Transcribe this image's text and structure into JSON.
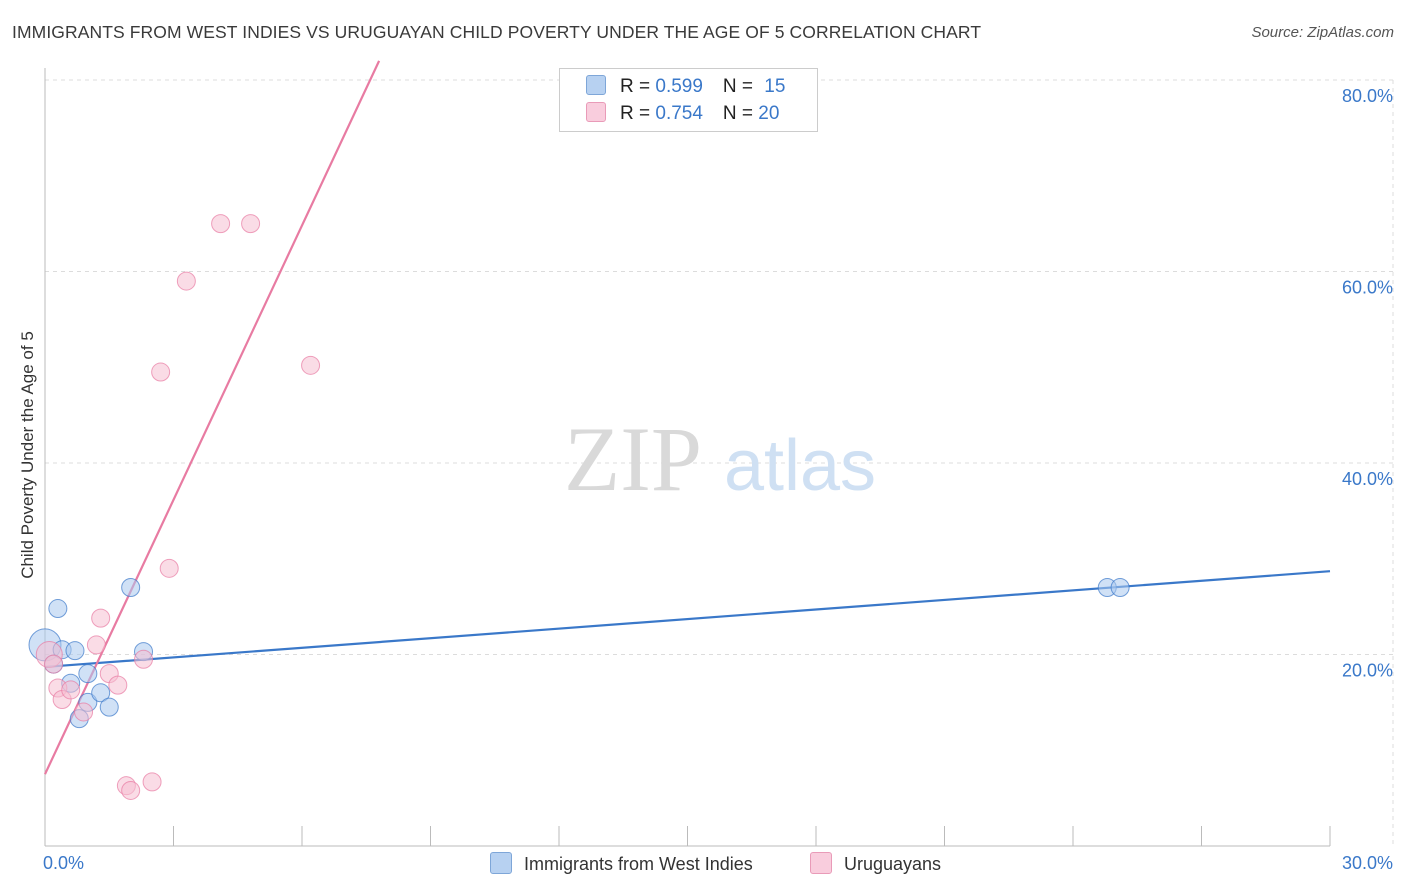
{
  "title": "IMMIGRANTS FROM WEST INDIES VS URUGUAYAN CHILD POVERTY UNDER THE AGE OF 5 CORRELATION CHART",
  "source": "Source: ZipAtlas.com",
  "watermark": {
    "zip": "ZIP",
    "atlas": "atlas"
  },
  "legend": {
    "rows": [
      {
        "r_label": "R = ",
        "r_value": "0.599",
        "n_label": "N = ",
        "n_value": "15"
      },
      {
        "r_label": "R = ",
        "r_value": "0.754",
        "n_label": "N = ",
        "n_value": "20"
      }
    ]
  },
  "colors": {
    "blue": "#3a78c9",
    "blue_fill": "#a9c8ef",
    "pink": "#e87ba2",
    "pink_fill": "#f6bfd2",
    "grid": "#dcdcdc"
  },
  "chart_data": {
    "type": "scatter",
    "title": "IMMIGRANTS FROM WEST INDIES VS URUGUAYAN CHILD POVERTY UNDER THE AGE OF 5 CORRELATION CHART",
    "xlabel": "",
    "ylabel": "Child Poverty Under the Age of 5",
    "xlim": [
      0,
      30
    ],
    "ylim": [
      0,
      80
    ],
    "x_tick_labels": [
      {
        "value": 0,
        "label": "0.0%"
      },
      {
        "value": 30,
        "label": "30.0%"
      }
    ],
    "y_tick_labels": [
      {
        "value": 20,
        "label": "20.0%"
      },
      {
        "value": 40,
        "label": "40.0%"
      },
      {
        "value": 60,
        "label": "60.0%"
      },
      {
        "value": 80,
        "label": "80.0%"
      }
    ],
    "series": [
      {
        "name": "Immigrants from West Indies",
        "color": "#3a78c9",
        "points": [
          {
            "x": 0.0,
            "y": 21.0
          },
          {
            "x": 0.2,
            "y": 19.0
          },
          {
            "x": 0.3,
            "y": 24.8
          },
          {
            "x": 0.4,
            "y": 20.5
          },
          {
            "x": 0.6,
            "y": 17.0
          },
          {
            "x": 0.7,
            "y": 20.4
          },
          {
            "x": 0.8,
            "y": 13.3
          },
          {
            "x": 1.0,
            "y": 18.0
          },
          {
            "x": 1.0,
            "y": 15.0
          },
          {
            "x": 1.3,
            "y": 16.0
          },
          {
            "x": 1.5,
            "y": 14.5
          },
          {
            "x": 2.0,
            "y": 27.0
          },
          {
            "x": 2.3,
            "y": 20.3
          },
          {
            "x": 24.8,
            "y": 27.0
          },
          {
            "x": 25.1,
            "y": 27.0
          }
        ],
        "trend": {
          "x1": 0.0,
          "y1": 18.7,
          "x2": 30.0,
          "y2": 28.7
        }
      },
      {
        "name": "Uruguayans",
        "color": "#e87ba2",
        "points": [
          {
            "x": 0.1,
            "y": 20.0
          },
          {
            "x": 0.2,
            "y": 19.0
          },
          {
            "x": 0.3,
            "y": 16.5
          },
          {
            "x": 0.4,
            "y": 15.3
          },
          {
            "x": 0.6,
            "y": 16.3
          },
          {
            "x": 0.9,
            "y": 14.0
          },
          {
            "x": 1.2,
            "y": 21.0
          },
          {
            "x": 1.3,
            "y": 23.8
          },
          {
            "x": 1.5,
            "y": 18.0
          },
          {
            "x": 1.7,
            "y": 16.8
          },
          {
            "x": 1.9,
            "y": 6.3
          },
          {
            "x": 2.0,
            "y": 5.8
          },
          {
            "x": 2.3,
            "y": 19.5
          },
          {
            "x": 2.5,
            "y": 6.7
          },
          {
            "x": 2.9,
            "y": 29.0
          },
          {
            "x": 2.7,
            "y": 49.5
          },
          {
            "x": 3.3,
            "y": 59.0
          },
          {
            "x": 4.1,
            "y": 65.0
          },
          {
            "x": 4.8,
            "y": 65.0
          },
          {
            "x": 6.2,
            "y": 50.2
          }
        ],
        "trend": {
          "x1": 0.0,
          "y1": 7.5,
          "x2": 7.8,
          "y2": 82.0
        }
      }
    ]
  }
}
